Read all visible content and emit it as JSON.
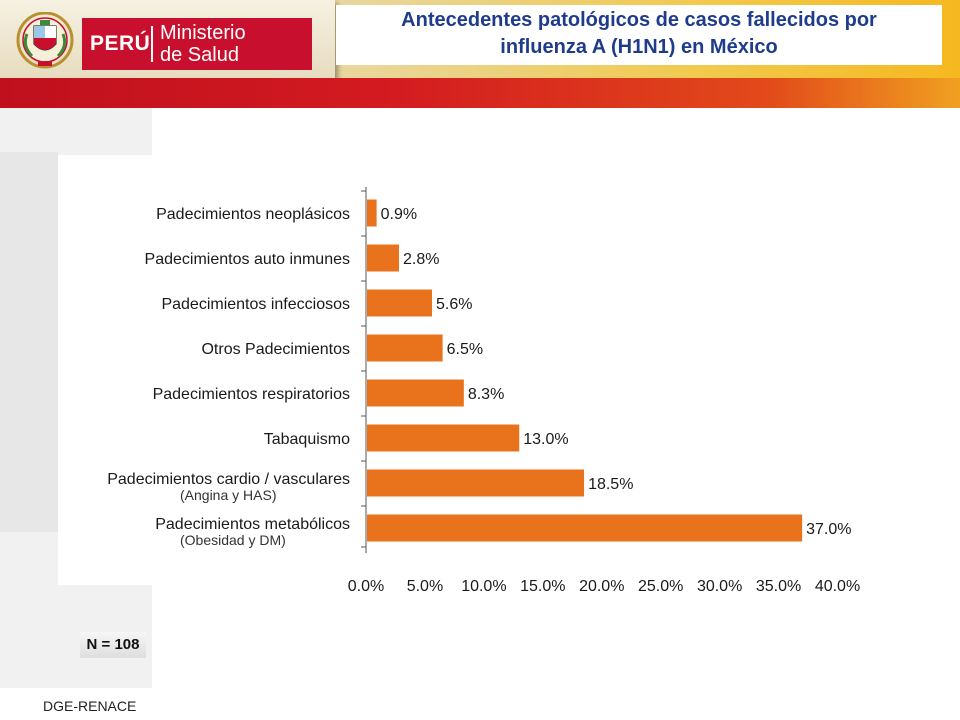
{
  "header": {
    "title_line1": "Antecedentes patológicos de casos fallecidos por",
    "title_line2": "influenza A (H1N1) en México",
    "brand_country": "PERÚ",
    "brand_ministry_line1": "Ministerio",
    "brand_ministry_line2": "de Salud",
    "colors": {
      "brand_red": "#c8102e",
      "title_blue": "#1f3c8c"
    }
  },
  "chart_data": {
    "type": "bar",
    "orientation": "horizontal",
    "categories": [
      {
        "label": "Padecimientos neoplásicos",
        "sublabel": ""
      },
      {
        "label": "Padecimientos auto inmunes",
        "sublabel": ""
      },
      {
        "label": "Padecimientos infecciosos",
        "sublabel": ""
      },
      {
        "label": "Otros Padecimientos",
        "sublabel": ""
      },
      {
        "label": "Padecimientos respiratorios",
        "sublabel": ""
      },
      {
        "label": "Tabaquismo",
        "sublabel": ""
      },
      {
        "label": "Padecimientos cardio / vasculares",
        "sublabel": "(Angina y HAS)"
      },
      {
        "label": "Padecimientos metabólicos",
        "sublabel": "(Obesidad y DM)"
      }
    ],
    "values": [
      0.9,
      2.8,
      5.6,
      6.5,
      8.3,
      13.0,
      18.5,
      37.0
    ],
    "value_labels": [
      "0.9%",
      "2.8%",
      "5.6%",
      "6.5%",
      "8.3%",
      "13.0%",
      "18.5%",
      "37.0%"
    ],
    "xlim": [
      0,
      40
    ],
    "x_ticks": [
      "0.0%",
      "5.0%",
      "10.0%",
      "15.0%",
      "20.0%",
      "25.0%",
      "30.0%",
      "35.0%",
      "40.0%"
    ],
    "bar_color": "#e8731c",
    "grid": false
  },
  "footer": {
    "sample_size": "N = 108",
    "source": "DGE-RENACE"
  }
}
